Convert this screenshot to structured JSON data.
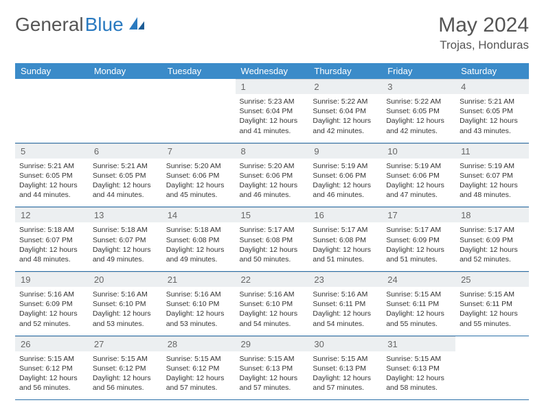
{
  "logo": {
    "text1": "General",
    "text2": "Blue"
  },
  "title": "May 2024",
  "location": "Trojas, Honduras",
  "colors": {
    "header_bg": "#3b8bc9",
    "header_text": "#ffffff",
    "daynum_bg": "#eceff1",
    "border": "#2a6fa8",
    "logo_blue": "#2a7ac0"
  },
  "weekdays": [
    "Sunday",
    "Monday",
    "Tuesday",
    "Wednesday",
    "Thursday",
    "Friday",
    "Saturday"
  ],
  "weeks": [
    [
      {
        "blank": true
      },
      {
        "blank": true
      },
      {
        "blank": true
      },
      {
        "num": "1",
        "sunrise": "Sunrise: 5:23 AM",
        "sunset": "Sunset: 6:04 PM",
        "daylight": "Daylight: 12 hours and 41 minutes."
      },
      {
        "num": "2",
        "sunrise": "Sunrise: 5:22 AM",
        "sunset": "Sunset: 6:04 PM",
        "daylight": "Daylight: 12 hours and 42 minutes."
      },
      {
        "num": "3",
        "sunrise": "Sunrise: 5:22 AM",
        "sunset": "Sunset: 6:05 PM",
        "daylight": "Daylight: 12 hours and 42 minutes."
      },
      {
        "num": "4",
        "sunrise": "Sunrise: 5:21 AM",
        "sunset": "Sunset: 6:05 PM",
        "daylight": "Daylight: 12 hours and 43 minutes."
      }
    ],
    [
      {
        "num": "5",
        "sunrise": "Sunrise: 5:21 AM",
        "sunset": "Sunset: 6:05 PM",
        "daylight": "Daylight: 12 hours and 44 minutes."
      },
      {
        "num": "6",
        "sunrise": "Sunrise: 5:21 AM",
        "sunset": "Sunset: 6:05 PM",
        "daylight": "Daylight: 12 hours and 44 minutes."
      },
      {
        "num": "7",
        "sunrise": "Sunrise: 5:20 AM",
        "sunset": "Sunset: 6:06 PM",
        "daylight": "Daylight: 12 hours and 45 minutes."
      },
      {
        "num": "8",
        "sunrise": "Sunrise: 5:20 AM",
        "sunset": "Sunset: 6:06 PM",
        "daylight": "Daylight: 12 hours and 46 minutes."
      },
      {
        "num": "9",
        "sunrise": "Sunrise: 5:19 AM",
        "sunset": "Sunset: 6:06 PM",
        "daylight": "Daylight: 12 hours and 46 minutes."
      },
      {
        "num": "10",
        "sunrise": "Sunrise: 5:19 AM",
        "sunset": "Sunset: 6:06 PM",
        "daylight": "Daylight: 12 hours and 47 minutes."
      },
      {
        "num": "11",
        "sunrise": "Sunrise: 5:19 AM",
        "sunset": "Sunset: 6:07 PM",
        "daylight": "Daylight: 12 hours and 48 minutes."
      }
    ],
    [
      {
        "num": "12",
        "sunrise": "Sunrise: 5:18 AM",
        "sunset": "Sunset: 6:07 PM",
        "daylight": "Daylight: 12 hours and 48 minutes."
      },
      {
        "num": "13",
        "sunrise": "Sunrise: 5:18 AM",
        "sunset": "Sunset: 6:07 PM",
        "daylight": "Daylight: 12 hours and 49 minutes."
      },
      {
        "num": "14",
        "sunrise": "Sunrise: 5:18 AM",
        "sunset": "Sunset: 6:08 PM",
        "daylight": "Daylight: 12 hours and 49 minutes."
      },
      {
        "num": "15",
        "sunrise": "Sunrise: 5:17 AM",
        "sunset": "Sunset: 6:08 PM",
        "daylight": "Daylight: 12 hours and 50 minutes."
      },
      {
        "num": "16",
        "sunrise": "Sunrise: 5:17 AM",
        "sunset": "Sunset: 6:08 PM",
        "daylight": "Daylight: 12 hours and 51 minutes."
      },
      {
        "num": "17",
        "sunrise": "Sunrise: 5:17 AM",
        "sunset": "Sunset: 6:09 PM",
        "daylight": "Daylight: 12 hours and 51 minutes."
      },
      {
        "num": "18",
        "sunrise": "Sunrise: 5:17 AM",
        "sunset": "Sunset: 6:09 PM",
        "daylight": "Daylight: 12 hours and 52 minutes."
      }
    ],
    [
      {
        "num": "19",
        "sunrise": "Sunrise: 5:16 AM",
        "sunset": "Sunset: 6:09 PM",
        "daylight": "Daylight: 12 hours and 52 minutes."
      },
      {
        "num": "20",
        "sunrise": "Sunrise: 5:16 AM",
        "sunset": "Sunset: 6:10 PM",
        "daylight": "Daylight: 12 hours and 53 minutes."
      },
      {
        "num": "21",
        "sunrise": "Sunrise: 5:16 AM",
        "sunset": "Sunset: 6:10 PM",
        "daylight": "Daylight: 12 hours and 53 minutes."
      },
      {
        "num": "22",
        "sunrise": "Sunrise: 5:16 AM",
        "sunset": "Sunset: 6:10 PM",
        "daylight": "Daylight: 12 hours and 54 minutes."
      },
      {
        "num": "23",
        "sunrise": "Sunrise: 5:16 AM",
        "sunset": "Sunset: 6:11 PM",
        "daylight": "Daylight: 12 hours and 54 minutes."
      },
      {
        "num": "24",
        "sunrise": "Sunrise: 5:15 AM",
        "sunset": "Sunset: 6:11 PM",
        "daylight": "Daylight: 12 hours and 55 minutes."
      },
      {
        "num": "25",
        "sunrise": "Sunrise: 5:15 AM",
        "sunset": "Sunset: 6:11 PM",
        "daylight": "Daylight: 12 hours and 55 minutes."
      }
    ],
    [
      {
        "num": "26",
        "sunrise": "Sunrise: 5:15 AM",
        "sunset": "Sunset: 6:12 PM",
        "daylight": "Daylight: 12 hours and 56 minutes."
      },
      {
        "num": "27",
        "sunrise": "Sunrise: 5:15 AM",
        "sunset": "Sunset: 6:12 PM",
        "daylight": "Daylight: 12 hours and 56 minutes."
      },
      {
        "num": "28",
        "sunrise": "Sunrise: 5:15 AM",
        "sunset": "Sunset: 6:12 PM",
        "daylight": "Daylight: 12 hours and 57 minutes."
      },
      {
        "num": "29",
        "sunrise": "Sunrise: 5:15 AM",
        "sunset": "Sunset: 6:13 PM",
        "daylight": "Daylight: 12 hours and 57 minutes."
      },
      {
        "num": "30",
        "sunrise": "Sunrise: 5:15 AM",
        "sunset": "Sunset: 6:13 PM",
        "daylight": "Daylight: 12 hours and 57 minutes."
      },
      {
        "num": "31",
        "sunrise": "Sunrise: 5:15 AM",
        "sunset": "Sunset: 6:13 PM",
        "daylight": "Daylight: 12 hours and 58 minutes."
      },
      {
        "blank": true
      }
    ]
  ]
}
